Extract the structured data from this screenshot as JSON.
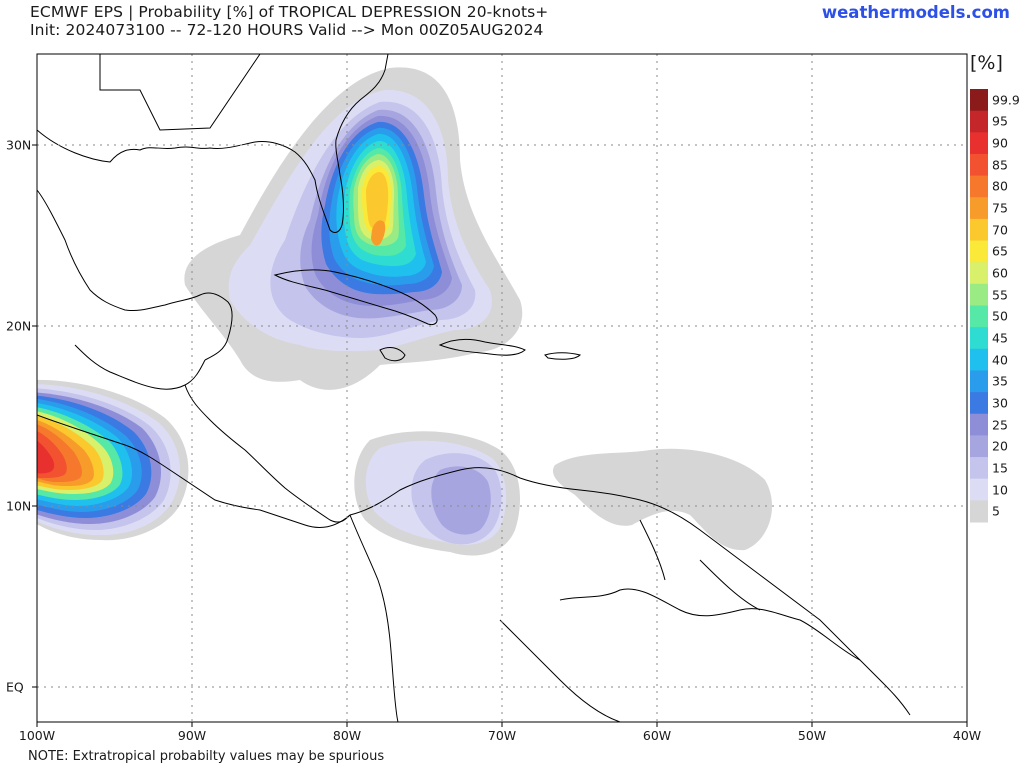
{
  "header": {
    "title_line1": "ECMWF EPS | Probability [%] of TROPICAL DEPRESSION 20-knots+",
    "title_line2": "Init: 2024073100 -- 72-120 HOURS Valid --> Mon 00Z05AUG2024",
    "brand": "weathermodels.com"
  },
  "footer": {
    "note": "NOTE: Extratropical probabilty values may be spurious"
  },
  "axes": {
    "x_ticks": [
      "100W",
      "90W",
      "80W",
      "70W",
      "60W",
      "50W",
      "40W"
    ],
    "y_ticks": [
      "30N",
      "20N",
      "10N",
      "EQ"
    ]
  },
  "legend": {
    "unit": "[%]",
    "levels": [
      "99.9",
      "95",
      "90",
      "85",
      "80",
      "75",
      "70",
      "65",
      "60",
      "55",
      "50",
      "45",
      "40",
      "35",
      "30",
      "25",
      "20",
      "15",
      "10",
      "5"
    ],
    "colors": [
      "#8b1a1a",
      "#c4262a",
      "#e8302e",
      "#f25230",
      "#f5782c",
      "#f79c2a",
      "#fbc82e",
      "#fbe93a",
      "#d8f06a",
      "#9aeb84",
      "#55e8a6",
      "#2fdcd2",
      "#1fc0ee",
      "#2a9cec",
      "#3a7ae2",
      "#8e8ed8",
      "#a7a5e0",
      "#c4c4ec",
      "#dcdcf4",
      "#d6d6d6"
    ]
  }
}
